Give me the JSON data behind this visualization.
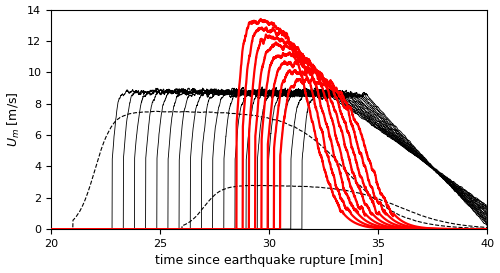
{
  "xlim": [
    20,
    40
  ],
  "ylim": [
    0,
    14
  ],
  "xlabel": "time since earthquake rupture [min]",
  "ylabel": "$U_m$ [m/s]",
  "xticks": [
    20,
    25,
    30,
    35,
    40
  ],
  "yticks": [
    0,
    2,
    4,
    6,
    8,
    10,
    12,
    14
  ],
  "black_line_color": "black",
  "red_line_color": "red",
  "figsize": [
    5.0,
    2.73
  ],
  "dpi": 100
}
